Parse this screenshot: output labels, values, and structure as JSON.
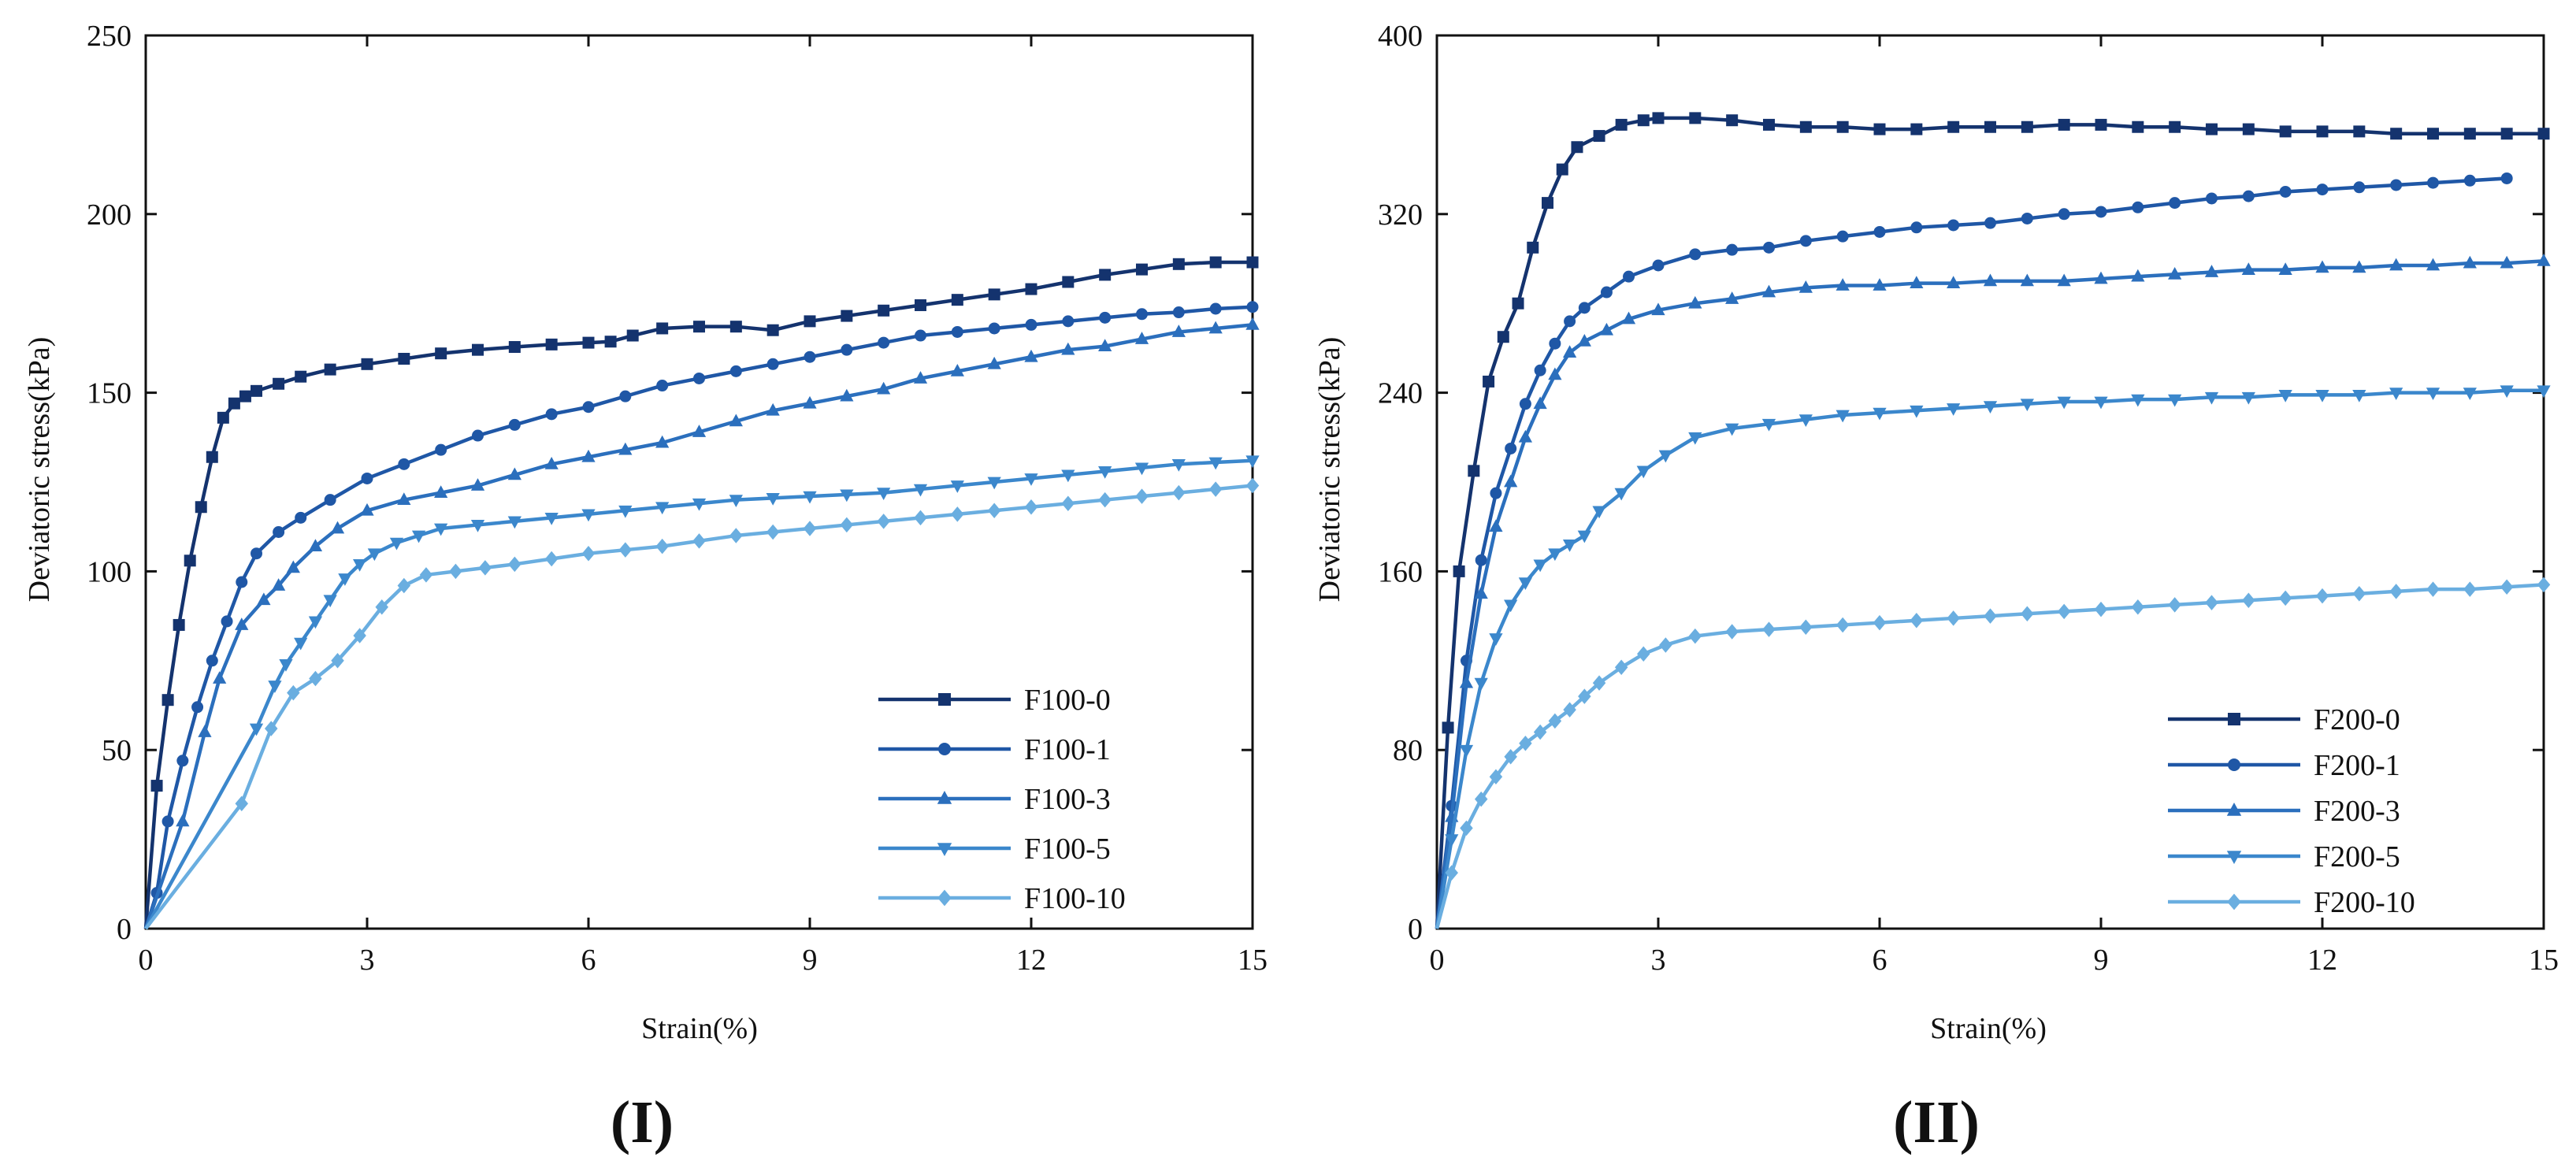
{
  "chart_data": [
    {
      "type": "line",
      "panel_label": "(I)",
      "xlabel": "Strain(%)",
      "ylabel": "Deviatoric stress(kPa)",
      "xlim": [
        0,
        15
      ],
      "ylim": [
        0,
        250
      ],
      "xticks": [
        0,
        3,
        6,
        9,
        12,
        15
      ],
      "yticks": [
        0,
        50,
        100,
        150,
        200,
        250
      ],
      "legend_position": "bottom-right",
      "series": [
        {
          "name": "F100-0",
          "marker": "square",
          "color": "#14336e",
          "x": [
            0,
            0.15,
            0.3,
            0.45,
            0.6,
            0.75,
            0.9,
            1.05,
            1.2,
            1.35,
            1.5,
            1.8,
            2.1,
            2.5,
            3.0,
            3.5,
            4.0,
            4.5,
            5.0,
            5.5,
            6.0,
            6.3,
            6.6,
            7.0,
            7.5,
            8.0,
            8.5,
            9.0,
            9.5,
            10.0,
            10.5,
            11.0,
            11.5,
            12.0,
            12.5,
            13.0,
            13.5,
            14.0,
            14.5,
            15.0
          ],
          "y": [
            0,
            40,
            64,
            85,
            103,
            118,
            132,
            143,
            147,
            149,
            150.5,
            152.5,
            154.5,
            156.5,
            158,
            159.5,
            161,
            162,
            162.8,
            163.5,
            164,
            164.3,
            166,
            168,
            168.5,
            168.5,
            167.5,
            170,
            171.5,
            173,
            174.5,
            176,
            177.5,
            179,
            181,
            183,
            184.5,
            186,
            186.5,
            186.5
          ]
        },
        {
          "name": "F100-1",
          "marker": "circle",
          "color": "#1f57a6",
          "x": [
            0,
            0.15,
            0.3,
            0.5,
            0.7,
            0.9,
            1.1,
            1.3,
            1.5,
            1.8,
            2.1,
            2.5,
            3.0,
            3.5,
            4.0,
            4.5,
            5.0,
            5.5,
            6.0,
            6.5,
            7.0,
            7.5,
            8.0,
            8.5,
            9.0,
            9.5,
            10.0,
            10.5,
            11.0,
            11.5,
            12.0,
            12.5,
            13.0,
            13.5,
            14.0,
            14.5,
            15.0
          ],
          "y": [
            0,
            10,
            30,
            47,
            62,
            75,
            86,
            97,
            105,
            111,
            115,
            120,
            126,
            130,
            134,
            138,
            141,
            144,
            146,
            149,
            152,
            154,
            156,
            158,
            160,
            162,
            164,
            166,
            167,
            168,
            169,
            170,
            171,
            172,
            172.5,
            173.5,
            174
          ]
        },
        {
          "name": "F100-3",
          "marker": "triangle-up",
          "color": "#2b6fbd",
          "x": [
            0,
            0.5,
            0.8,
            1.0,
            1.3,
            1.6,
            1.8,
            2.0,
            2.3,
            2.6,
            3.0,
            3.5,
            4.0,
            4.5,
            5.0,
            5.5,
            6.0,
            6.5,
            7.0,
            7.5,
            8.0,
            8.5,
            9.0,
            9.5,
            10.0,
            10.5,
            11.0,
            11.5,
            12.0,
            12.5,
            13.0,
            13.5,
            14.0,
            14.5,
            15.0
          ],
          "y": [
            0,
            30,
            55,
            70,
            85,
            92,
            96,
            101,
            107,
            112,
            117,
            120,
            122,
            124,
            127,
            130,
            132,
            134,
            136,
            139,
            142,
            145,
            147,
            149,
            151,
            154,
            156,
            158,
            160,
            162,
            163,
            165,
            167,
            168,
            169
          ]
        },
        {
          "name": "F100-5",
          "marker": "triangle-down",
          "color": "#3b87cc",
          "x": [
            0,
            1.5,
            1.75,
            1.9,
            2.1,
            2.3,
            2.5,
            2.7,
            2.9,
            3.1,
            3.4,
            3.7,
            4.0,
            4.5,
            5.0,
            5.5,
            6.0,
            6.5,
            7.0,
            7.5,
            8.0,
            8.5,
            9.0,
            9.5,
            10.0,
            10.5,
            11.0,
            11.5,
            12.0,
            12.5,
            13.0,
            13.5,
            14.0,
            14.5,
            15.0
          ],
          "y": [
            0,
            56,
            68,
            74,
            80,
            86,
            92,
            98,
            102,
            105,
            108,
            110,
            112,
            113,
            114,
            115,
            116,
            117,
            118,
            119,
            120,
            120.5,
            121,
            121.5,
            122,
            123,
            124,
            125,
            126,
            127,
            128,
            129,
            130,
            130.5,
            131
          ]
        },
        {
          "name": "F100-10",
          "marker": "diamond",
          "color": "#6aaee0",
          "x": [
            0,
            1.3,
            1.7,
            2.0,
            2.3,
            2.6,
            2.9,
            3.2,
            3.5,
            3.8,
            4.2,
            4.6,
            5.0,
            5.5,
            6.0,
            6.5,
            7.0,
            7.5,
            8.0,
            8.5,
            9.0,
            9.5,
            10.0,
            10.5,
            11.0,
            11.5,
            12.0,
            12.5,
            13.0,
            13.5,
            14.0,
            14.5,
            15.0
          ],
          "y": [
            0,
            35,
            56,
            66,
            70,
            75,
            82,
            90,
            96,
            99,
            100,
            101,
            102,
            103.5,
            105,
            106,
            107,
            108.5,
            110,
            111,
            112,
            113,
            114,
            115,
            116,
            117,
            118,
            119,
            120,
            121,
            122,
            123,
            124
          ]
        }
      ]
    },
    {
      "type": "line",
      "panel_label": "(II)",
      "xlabel": "Strain(%)",
      "ylabel": "Deviatoric stress(kPa)",
      "xlim": [
        0,
        15
      ],
      "ylim": [
        0,
        400
      ],
      "xticks": [
        0,
        3,
        6,
        9,
        12,
        15
      ],
      "yticks": [
        0,
        80,
        160,
        240,
        320,
        400
      ],
      "legend_position": "bottom-right",
      "series": [
        {
          "name": "F200-0",
          "marker": "square",
          "color": "#14336e",
          "x": [
            0,
            0.15,
            0.3,
            0.5,
            0.7,
            0.9,
            1.1,
            1.3,
            1.5,
            1.7,
            1.9,
            2.2,
            2.5,
            2.8,
            3.0,
            3.5,
            4.0,
            4.5,
            5.0,
            5.5,
            6.0,
            6.5,
            7.0,
            7.5,
            8.0,
            8.5,
            9.0,
            9.5,
            10.0,
            10.5,
            11.0,
            11.5,
            12.0,
            12.5,
            13.0,
            13.5,
            14.0,
            14.5,
            15.0
          ],
          "y": [
            0,
            90,
            160,
            205,
            245,
            265,
            280,
            305,
            325,
            340,
            350,
            355,
            360,
            362,
            363,
            363,
            362,
            360,
            359,
            359,
            358,
            358,
            359,
            359,
            359,
            360,
            360,
            359,
            359,
            358,
            358,
            357,
            357,
            357,
            356,
            356,
            356,
            356,
            356
          ]
        },
        {
          "name": "F200-1",
          "marker": "circle",
          "color": "#1f57a6",
          "x": [
            0,
            0.2,
            0.4,
            0.6,
            0.8,
            1.0,
            1.2,
            1.4,
            1.6,
            1.8,
            2.0,
            2.3,
            2.6,
            3.0,
            3.5,
            4.0,
            4.5,
            5.0,
            5.5,
            6.0,
            6.5,
            7.0,
            7.5,
            8.0,
            8.5,
            9.0,
            9.5,
            10.0,
            10.5,
            11.0,
            11.5,
            12.0,
            12.5,
            13.0,
            13.5,
            14.0,
            14.5
          ],
          "y": [
            0,
            55,
            120,
            165,
            195,
            215,
            235,
            250,
            262,
            272,
            278,
            285,
            292,
            297,
            302,
            304,
            305,
            308,
            310,
            312,
            314,
            315,
            316,
            318,
            320,
            321,
            323,
            325,
            327,
            328,
            330,
            331,
            332,
            333,
            334,
            335,
            336
          ]
        },
        {
          "name": "F200-3",
          "marker": "triangle-up",
          "color": "#2b6fbd",
          "x": [
            0,
            0.2,
            0.4,
            0.6,
            0.8,
            1.0,
            1.2,
            1.4,
            1.6,
            1.8,
            2.0,
            2.3,
            2.6,
            3.0,
            3.5,
            4.0,
            4.5,
            5.0,
            5.5,
            6.0,
            6.5,
            7.0,
            7.5,
            8.0,
            8.5,
            9.0,
            9.5,
            10.0,
            10.5,
            11.0,
            11.5,
            12.0,
            12.5,
            13.0,
            13.5,
            14.0,
            14.5,
            15.0
          ],
          "y": [
            0,
            50,
            110,
            150,
            180,
            200,
            220,
            235,
            248,
            258,
            263,
            268,
            273,
            277,
            280,
            282,
            285,
            287,
            288,
            288,
            289,
            289,
            290,
            290,
            290,
            291,
            292,
            293,
            294,
            295,
            295,
            296,
            296,
            297,
            297,
            298,
            298,
            299
          ]
        },
        {
          "name": "F200-5",
          "marker": "triangle-down",
          "color": "#3b87cc",
          "x": [
            0,
            0.2,
            0.4,
            0.6,
            0.8,
            1.0,
            1.2,
            1.4,
            1.6,
            1.8,
            2.0,
            2.2,
            2.5,
            2.8,
            3.1,
            3.5,
            4.0,
            4.5,
            5.0,
            5.5,
            6.0,
            6.5,
            7.0,
            7.5,
            8.0,
            8.5,
            9.0,
            9.5,
            10.0,
            10.5,
            11.0,
            11.5,
            12.0,
            12.5,
            13.0,
            13.5,
            14.0,
            14.5,
            15.0
          ],
          "y": [
            0,
            40,
            80,
            110,
            130,
            145,
            155,
            163,
            168,
            172,
            176,
            187,
            195,
            205,
            212,
            220,
            224,
            226,
            228,
            230,
            231,
            232,
            233,
            234,
            235,
            236,
            236,
            237,
            237,
            238,
            238,
            239,
            239,
            239,
            240,
            240,
            240,
            241,
            241
          ]
        },
        {
          "name": "F200-10",
          "marker": "diamond",
          "color": "#6aaee0",
          "x": [
            0,
            0.2,
            0.4,
            0.6,
            0.8,
            1.0,
            1.2,
            1.4,
            1.6,
            1.8,
            2.0,
            2.2,
            2.5,
            2.8,
            3.1,
            3.5,
            4.0,
            4.5,
            5.0,
            5.5,
            6.0,
            6.5,
            7.0,
            7.5,
            8.0,
            8.5,
            9.0,
            9.5,
            10.0,
            10.5,
            11.0,
            11.5,
            12.0,
            12.5,
            13.0,
            13.5,
            14.0,
            14.5,
            15.0
          ],
          "y": [
            0,
            25,
            45,
            58,
            68,
            77,
            83,
            88,
            93,
            98,
            104,
            110,
            117,
            123,
            127,
            131,
            133,
            134,
            135,
            136,
            137,
            138,
            139,
            140,
            141,
            142,
            143,
            144,
            145,
            146,
            147,
            148,
            149,
            150,
            151,
            152,
            152,
            153,
            154
          ]
        }
      ]
    }
  ]
}
